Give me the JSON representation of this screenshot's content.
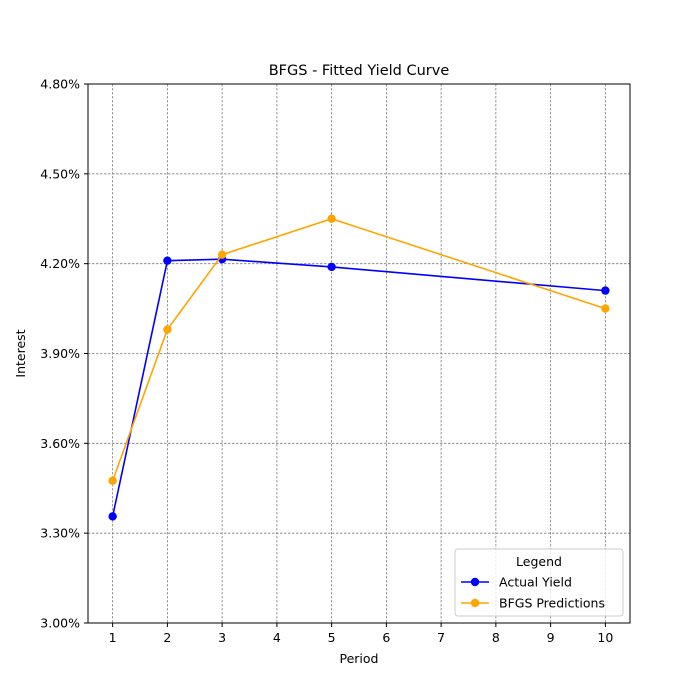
{
  "chart_data": {
    "type": "line",
    "title": "BFGS - Fitted Yield Curve",
    "xlabel": "Period",
    "ylabel": "Interest",
    "x": [
      1,
      2,
      3,
      5,
      10
    ],
    "xticks": [
      1,
      2,
      3,
      4,
      5,
      6,
      7,
      8,
      9,
      10
    ],
    "xticklabels": [
      "1",
      "2",
      "3",
      "4",
      "5",
      "6",
      "7",
      "8",
      "9",
      "10"
    ],
    "xlim": [
      0.55,
      10.45
    ],
    "ylim": [
      3.0,
      4.8
    ],
    "yticks": [
      3.0,
      3.3,
      3.6,
      3.9,
      4.2,
      4.5,
      4.8
    ],
    "yticklabels": [
      "3.00%",
      "3.30%",
      "3.60%",
      "3.90%",
      "4.20%",
      "4.50%",
      "4.80%"
    ],
    "grid": true,
    "series": [
      {
        "name": "Actual Yield",
        "color": "#0000ff",
        "values": [
          3.356,
          4.21,
          4.215,
          4.189,
          4.11
        ]
      },
      {
        "name": "BFGS Predictions",
        "color": "#ffa500",
        "values": [
          3.475,
          3.98,
          4.23,
          4.35,
          4.05
        ]
      }
    ],
    "legend": {
      "title": "Legend",
      "position": "lower-right"
    }
  }
}
